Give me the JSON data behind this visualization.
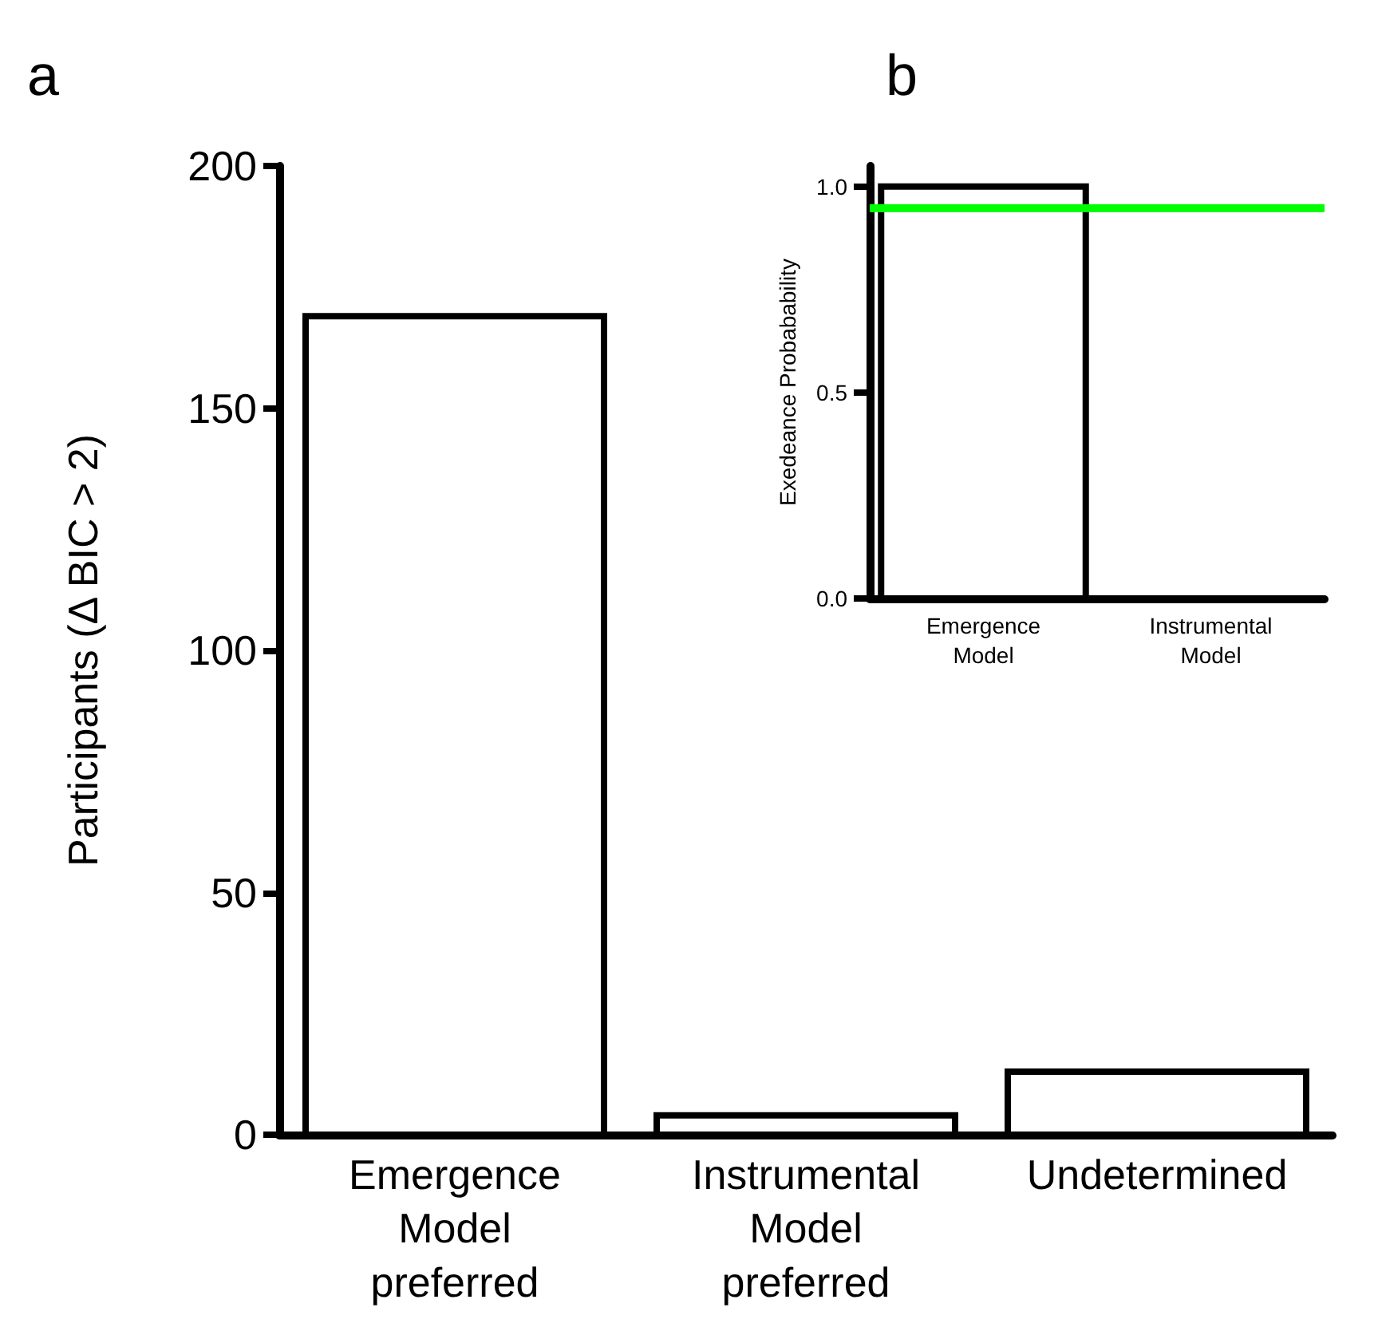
{
  "chart_data": [
    {
      "type": "bar",
      "title": "a",
      "ylabel": "Participants (Δ BIC > 2)",
      "categories": [
        "Emergence Model preferred",
        "Instrumental Model preferred",
        "Undetermined"
      ],
      "values": [
        169,
        4,
        13
      ],
      "color": "#ffffff",
      "ylim": [
        0,
        200
      ],
      "yticks": [
        0,
        50,
        100,
        150,
        200
      ]
    },
    {
      "type": "bar",
      "title": "b",
      "ylabel": "Exedeance Probabability",
      "categories": [
        "Emergence Model",
        "Instrumental Model"
      ],
      "values": [
        1.0,
        0.0
      ],
      "color": "#ffffff",
      "ylim": [
        0,
        1.05
      ],
      "yticks": [
        {
          "value": 0,
          "label": "0.0"
        },
        {
          "value": 0.5,
          "label": "0.5"
        },
        {
          "value": 1,
          "label": "1.0"
        }
      ],
      "ref_lines": [
        {
          "axis": "y",
          "value": 0.95,
          "color": "#00ff00"
        }
      ]
    }
  ]
}
